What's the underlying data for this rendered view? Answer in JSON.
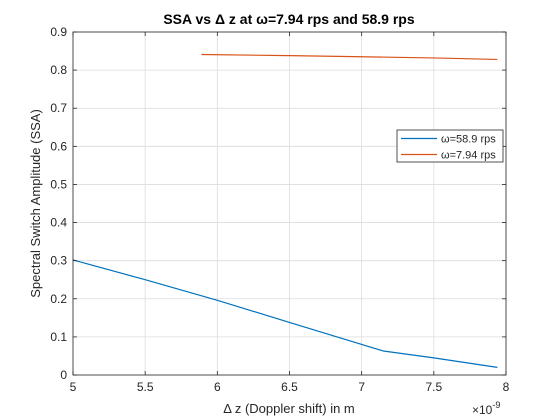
{
  "chart_data": {
    "type": "line",
    "title": "SSA vs Δ z at ω=7.94 rps and 58.9 rps",
    "xlabel": "Δ z (Doppler shift) in m",
    "ylabel": "Spectral Switch Amplitude (SSA)",
    "x_multiplier": "×10",
    "x_exponent": "-9",
    "xlim": [
      5,
      8
    ],
    "ylim": [
      0,
      0.9
    ],
    "xticks": [
      5,
      5.5,
      6,
      6.5,
      7,
      7.5,
      8
    ],
    "xtick_labels": [
      "5",
      "5.5",
      "6",
      "6.5",
      "7",
      "7.5",
      "8"
    ],
    "yticks": [
      0,
      0.1,
      0.2,
      0.3,
      0.4,
      0.5,
      0.6,
      0.7,
      0.8,
      0.9
    ],
    "ytick_labels": [
      "0",
      "0.1",
      "0.2",
      "0.3",
      "0.4",
      "0.5",
      "0.6",
      "0.7",
      "0.8",
      "0.9"
    ],
    "grid": true,
    "legend_position": "right",
    "series": [
      {
        "name": "ω=58.9 rps",
        "color": "#0072BD",
        "x": [
          5.0,
          5.5,
          6.0,
          6.5,
          7.15,
          7.5,
          7.94
        ],
        "y": [
          0.302,
          0.25,
          0.196,
          0.138,
          0.063,
          0.045,
          0.02
        ]
      },
      {
        "name": "ω=7.94 rps",
        "color": "#D95319",
        "x": [
          5.89,
          6.5,
          7.0,
          7.5,
          7.94
        ],
        "y": [
          0.841,
          0.838,
          0.835,
          0.832,
          0.828
        ]
      }
    ]
  }
}
